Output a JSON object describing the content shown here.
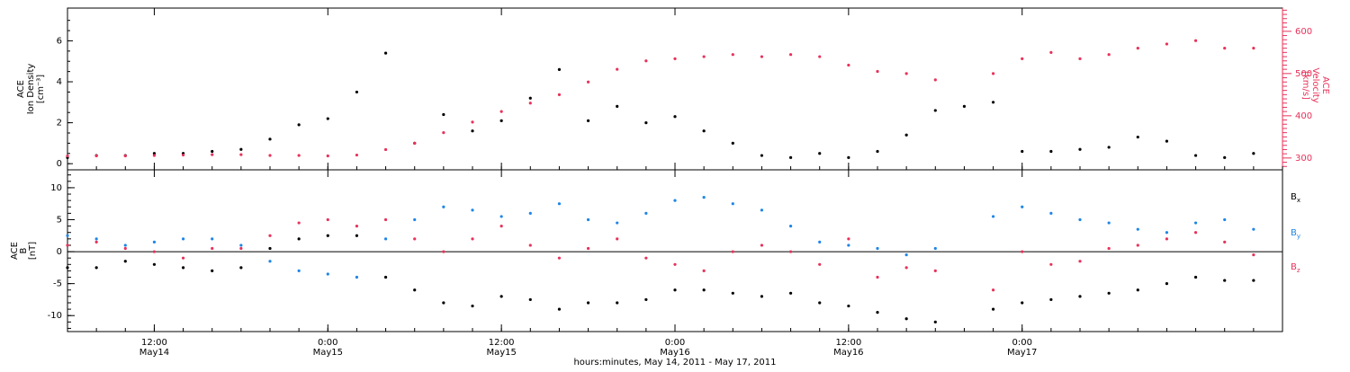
{
  "colors": {
    "black": "#000000",
    "blue": "#1f86e6",
    "red": "#e8325a"
  },
  "xaxis": {
    "title": "hours:minutes, May 14, 2011 - May 17, 2011",
    "ticks": [
      {
        "time": "12:00",
        "date": "May14"
      },
      {
        "time": "0:00",
        "date": "May15"
      },
      {
        "time": "12:00",
        "date": "May15"
      },
      {
        "time": "0:00",
        "date": "May16"
      },
      {
        "time": "12:00",
        "date": "May16"
      },
      {
        "time": "0:00",
        "date": "May17"
      }
    ]
  },
  "chart_data": [
    {
      "type": "scatter",
      "panel": "top",
      "title": "",
      "ylabel_left": [
        "ACE",
        "Ion Density",
        "[cm⁻³]"
      ],
      "ylabel_right": [
        "ACE",
        "Velocity",
        "[km/s]"
      ],
      "x_range_hours": [
        0,
        84
      ],
      "ylim_left": [
        -0.3,
        7.6
      ],
      "ylim_right": [
        272,
        655
      ],
      "yticks_left": [
        "0",
        "2",
        "4",
        "6"
      ],
      "yticks_right": [
        "300",
        "400",
        "500",
        "600"
      ],
      "series": [
        {
          "name": "",
          "axis": "left",
          "x": [
            0,
            2,
            4,
            6,
            8,
            10,
            12,
            14,
            16,
            18,
            20,
            22,
            24,
            26,
            28,
            30,
            32,
            34,
            36,
            38,
            40,
            42,
            44,
            46,
            48,
            50,
            52,
            54,
            56,
            58,
            60,
            62,
            64,
            66,
            68,
            70,
            72,
            74,
            76,
            78,
            80,
            82
          ],
          "y": [
            0.3,
            0.4,
            0.4,
            0.5,
            0.5,
            0.6,
            0.7,
            1.2,
            1.9,
            2.2,
            3.5,
            5.4,
            1.0,
            2.4,
            1.6,
            2.1,
            3.2,
            4.6,
            2.1,
            2.8,
            2.0,
            2.3,
            1.6,
            1.0,
            0.4,
            0.3,
            0.5,
            0.3,
            0.6,
            1.4,
            2.6,
            2.8,
            3.0,
            0.6,
            0.6,
            0.7,
            0.8,
            1.3,
            1.1,
            0.4,
            0.3,
            0.5
          ]
        },
        {
          "name": "",
          "axis": "right",
          "x": [
            0,
            2,
            4,
            6,
            8,
            10,
            12,
            14,
            16,
            18,
            20,
            22,
            24,
            26,
            28,
            30,
            32,
            34,
            36,
            38,
            40,
            42,
            44,
            46,
            48,
            50,
            52,
            54,
            56,
            58,
            60,
            62,
            64,
            66,
            68,
            70,
            72,
            74,
            76,
            78,
            80,
            82
          ],
          "y": [
            305,
            305,
            305,
            306,
            307,
            308,
            308,
            306,
            306,
            305,
            307,
            320,
            335,
            360,
            385,
            410,
            430,
            450,
            480,
            510,
            530,
            535,
            540,
            545,
            540,
            545,
            540,
            520,
            505,
            500,
            485,
            null,
            500,
            535,
            550,
            535,
            545,
            560,
            570,
            578,
            560,
            560
          ]
        }
      ]
    },
    {
      "type": "scatter",
      "panel": "bottom",
      "title": "",
      "ylabel_left": [
        "ACE",
        "B",
        "[nT]"
      ],
      "x_range_hours": [
        0,
        84
      ],
      "ylim": [
        -12.5,
        12.8
      ],
      "yticks": [
        "10",
        "5",
        "0",
        "-5",
        "-10"
      ],
      "legend_position": "right",
      "series": [
        {
          "name": "Bx",
          "color": "#000000",
          "x": [
            0,
            2,
            4,
            6,
            8,
            10,
            12,
            14,
            16,
            18,
            20,
            22,
            24,
            26,
            28,
            30,
            32,
            34,
            36,
            38,
            40,
            42,
            44,
            46,
            48,
            50,
            52,
            54,
            56,
            58,
            60,
            62,
            64,
            66,
            68,
            70,
            72,
            74,
            76,
            78,
            80,
            82
          ],
          "y": [
            -2.5,
            -2.5,
            -1.5,
            -2.0,
            -2.5,
            -3.0,
            -2.5,
            0.5,
            2.0,
            2.5,
            2.5,
            -4.0,
            -6.0,
            -8.0,
            -8.5,
            -7.0,
            -7.5,
            -9.0,
            -8.0,
            -8.0,
            -7.5,
            -6.0,
            -6.0,
            -6.5,
            -7.0,
            -6.5,
            -8.0,
            -8.5,
            -9.5,
            -10.5,
            -11.0,
            null,
            -9.0,
            -8.0,
            -7.5,
            -7.0,
            -6.5,
            -6.0,
            -5.0,
            -4.0,
            -4.5,
            -4.5
          ]
        },
        {
          "name": "By",
          "color": "#1f86e6",
          "x": [
            0,
            2,
            4,
            6,
            8,
            10,
            12,
            14,
            16,
            18,
            20,
            22,
            24,
            26,
            28,
            30,
            32,
            34,
            36,
            38,
            40,
            42,
            44,
            46,
            48,
            50,
            52,
            54,
            56,
            58,
            60,
            62,
            64,
            66,
            68,
            70,
            72,
            74,
            76,
            78,
            80,
            82
          ],
          "y": [
            2.5,
            2.0,
            1.0,
            1.5,
            2.0,
            2.0,
            1.0,
            -1.5,
            -3.0,
            -3.5,
            -4.0,
            2.0,
            5.0,
            7.0,
            6.5,
            5.5,
            6.0,
            7.5,
            5.0,
            4.5,
            6.0,
            8.0,
            8.5,
            7.5,
            6.5,
            4.0,
            1.5,
            1.0,
            0.5,
            -0.5,
            0.5,
            null,
            5.5,
            7.0,
            6.0,
            5.0,
            4.5,
            3.5,
            3.0,
            4.5,
            5.0,
            3.5
          ]
        },
        {
          "name": "Bz",
          "color": "#e8325a",
          "x": [
            0,
            2,
            4,
            6,
            8,
            10,
            12,
            14,
            16,
            18,
            20,
            22,
            24,
            26,
            28,
            30,
            32,
            34,
            36,
            38,
            40,
            42,
            44,
            46,
            48,
            50,
            52,
            54,
            56,
            58,
            60,
            62,
            64,
            66,
            68,
            70,
            72,
            74,
            76,
            78,
            80,
            82
          ],
          "y": [
            1.0,
            1.5,
            0.5,
            0.0,
            -1.0,
            0.5,
            0.5,
            2.5,
            4.5,
            5.0,
            4.0,
            5.0,
            2.0,
            0.0,
            2.0,
            4.0,
            1.0,
            -1.0,
            0.5,
            2.0,
            -1.0,
            -2.0,
            -3.0,
            0.0,
            1.0,
            0.0,
            -2.0,
            2.0,
            -4.0,
            -2.5,
            -3.0,
            null,
            -6.0,
            0.0,
            -2.0,
            -1.5,
            0.5,
            1.0,
            2.0,
            3.0,
            1.5,
            -0.5
          ]
        }
      ]
    }
  ]
}
